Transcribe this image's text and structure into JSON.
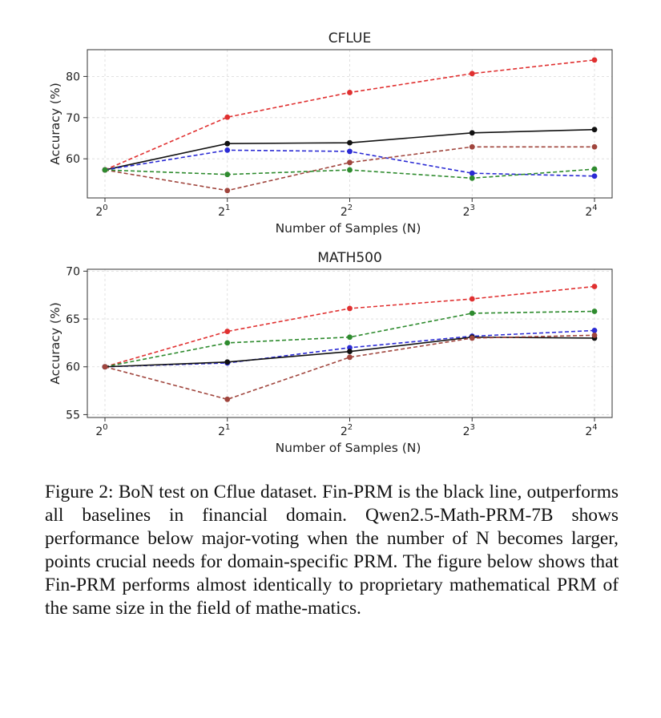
{
  "chart_data": [
    {
      "type": "line",
      "title": "CFLUE",
      "xlabel": "Number of Samples (N)",
      "ylabel": "Accuracy (%)",
      "x": [
        1,
        2,
        4,
        8,
        16
      ],
      "x_scale": "log2",
      "x_tick_labels": [
        {
          "base": "2",
          "exp": "0"
        },
        {
          "base": "2",
          "exp": "1"
        },
        {
          "base": "2",
          "exp": "2"
        },
        {
          "base": "2",
          "exp": "3"
        },
        {
          "base": "2",
          "exp": "4"
        }
      ],
      "yticks": [
        60,
        70,
        80
      ],
      "ylim": [
        50.5,
        86.5
      ],
      "grid": true,
      "series": [
        {
          "color": "#e03030",
          "style": "dashed",
          "values": [
            57.3,
            70.1,
            76.1,
            80.7,
            84.0
          ]
        },
        {
          "color": "#111111",
          "style": "solid",
          "values": [
            57.3,
            63.7,
            63.9,
            66.3,
            67.1
          ]
        },
        {
          "color": "#2b2bd4",
          "style": "dashed",
          "values": [
            57.3,
            62.1,
            61.8,
            56.5,
            55.8
          ]
        },
        {
          "color": "#a0453d",
          "style": "dashed",
          "values": [
            57.3,
            52.3,
            59.1,
            62.9,
            62.9
          ]
        },
        {
          "color": "#2e8b2e",
          "style": "dashed",
          "values": [
            57.3,
            56.2,
            57.3,
            55.3,
            57.5
          ]
        }
      ]
    },
    {
      "type": "line",
      "title": "MATH500",
      "xlabel": "Number of Samples (N)",
      "ylabel": "Accuracy (%)",
      "x": [
        1,
        2,
        4,
        8,
        16
      ],
      "x_scale": "log2",
      "x_tick_labels": [
        {
          "base": "2",
          "exp": "0"
        },
        {
          "base": "2",
          "exp": "1"
        },
        {
          "base": "2",
          "exp": "2"
        },
        {
          "base": "2",
          "exp": "3"
        },
        {
          "base": "2",
          "exp": "4"
        }
      ],
      "yticks": [
        55,
        60,
        65,
        70
      ],
      "ylim": [
        54.7,
        70.2
      ],
      "grid": true,
      "series": [
        {
          "color": "#e03030",
          "style": "dashed",
          "values": [
            60.0,
            63.7,
            66.1,
            67.1,
            68.4
          ]
        },
        {
          "color": "#2e8b2e",
          "style": "dashed",
          "values": [
            60.0,
            62.5,
            63.1,
            65.6,
            65.8
          ]
        },
        {
          "color": "#2b2bd4",
          "style": "dashed",
          "values": [
            60.0,
            60.4,
            62.0,
            63.2,
            63.8
          ]
        },
        {
          "color": "#111111",
          "style": "solid",
          "values": [
            60.0,
            60.5,
            61.6,
            63.1,
            63.0
          ]
        },
        {
          "color": "#a0453d",
          "style": "dashed",
          "values": [
            60.0,
            56.6,
            61.0,
            63.0,
            63.3
          ]
        }
      ]
    }
  ],
  "caption": "Figure 2: BoN test on Cflue dataset. Fin-PRM is the black line, outperforms all baselines in financial domain. Qwen2.5-Math-PRM-7B shows performance below major-voting when the number of N becomes larger, points crucial needs for domain-specific PRM. The figure below shows that Fin-PRM performs almost identically to proprietary mathematical PRM of the same size in the field of mathe-matics."
}
